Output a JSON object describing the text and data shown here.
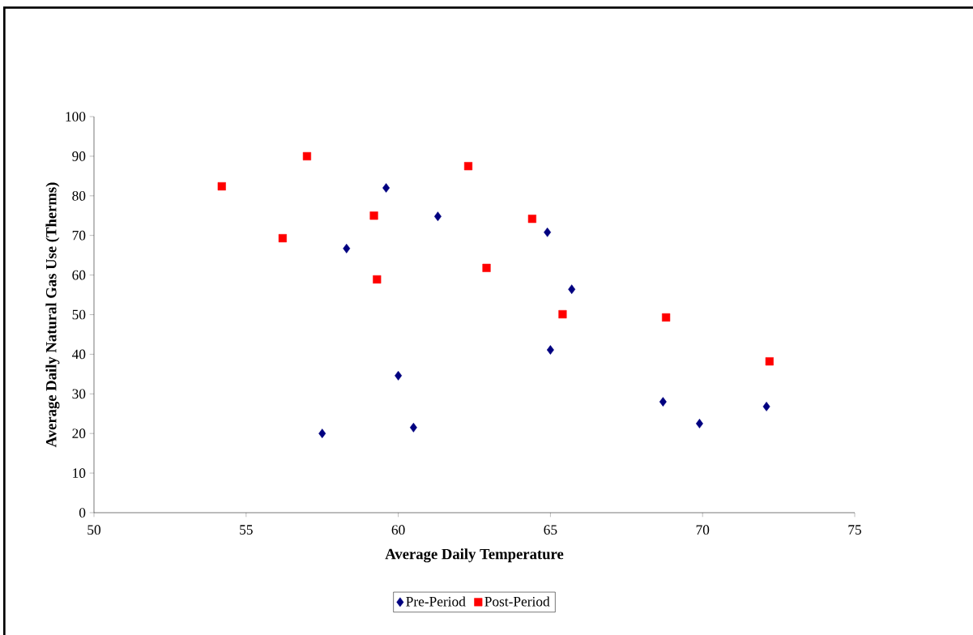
{
  "chart_data": {
    "type": "scatter",
    "xlabel": "Average Daily Temperature",
    "ylabel": "Average Daily Natural Gas Use (Therms)",
    "xlim": [
      50,
      75
    ],
    "xticks": [
      50,
      55,
      60,
      65,
      70,
      75
    ],
    "ylim": [
      0,
      100
    ],
    "yticks": [
      0,
      10,
      20,
      30,
      40,
      50,
      60,
      70,
      80,
      90,
      100
    ],
    "grid": false,
    "legend": "bottom",
    "series": [
      {
        "name": "Pre-Period",
        "color": "#000080",
        "marker": "diamond",
        "x": [
          57.5,
          58.3,
          59.6,
          60.0,
          60.5,
          61.3,
          64.9,
          65.0,
          65.7,
          68.7,
          69.9,
          72.1
        ],
        "values": [
          20,
          66.7,
          82,
          34.6,
          21.5,
          74.8,
          70.8,
          41.1,
          56.4,
          28,
          22.5,
          26.8
        ]
      },
      {
        "name": "Post-Period",
        "color": "#ff0000",
        "marker": "square",
        "x": [
          54.2,
          56.2,
          57.0,
          59.2,
          59.3,
          62.3,
          62.9,
          64.4,
          65.4,
          68.8,
          72.2
        ],
        "values": [
          82.4,
          69.3,
          90,
          75,
          58.9,
          87.5,
          61.8,
          74.2,
          50.1,
          49.3,
          38.2
        ]
      }
    ]
  }
}
